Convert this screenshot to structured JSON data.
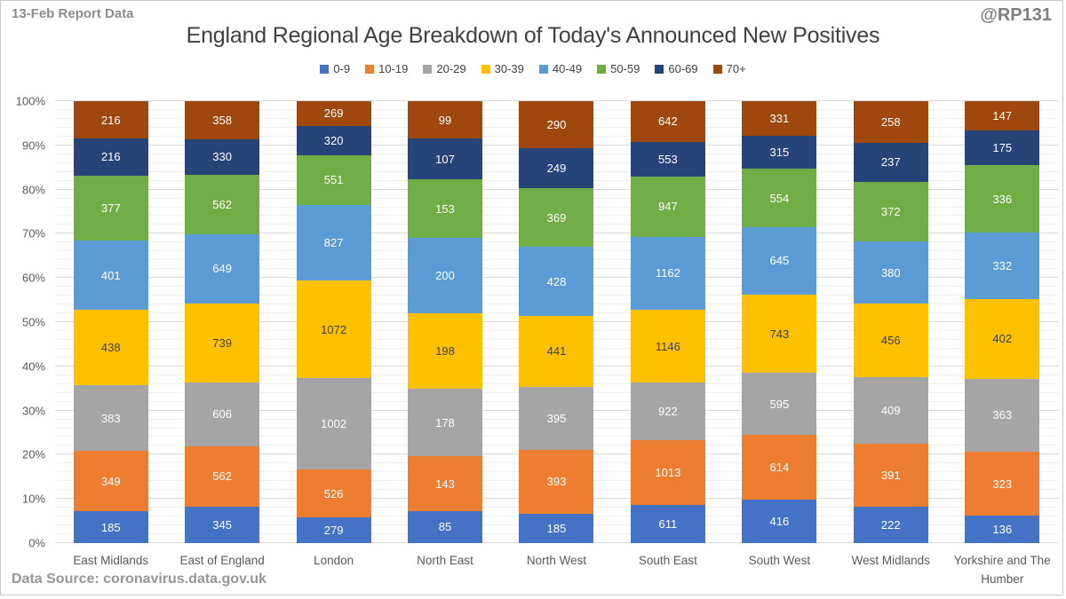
{
  "header": {
    "report_label": "13-Feb Report Data",
    "handle": "@RP131"
  },
  "footer": {
    "source": "Data Source: coronavirus.data.gov.uk"
  },
  "chart_data": {
    "type": "bar",
    "variant": "100-percent-stacked-column",
    "title": "England Regional Age Breakdown of Today's Announced New Positives",
    "xlabel": "",
    "ylabel": "",
    "ylim": [
      0,
      100
    ],
    "legend_position": "top",
    "grid": "on",
    "y_tick_labels": [
      "0%",
      "10%",
      "20%",
      "30%",
      "40%",
      "50%",
      "60%",
      "70%",
      "80%",
      "90%",
      "100%"
    ],
    "gridlines": {
      "major_step": 10,
      "minor_step": 2,
      "major_color": "#d9d9d9",
      "minor_color": "#efefef"
    },
    "categories": [
      "East Midlands",
      "East of England",
      "London",
      "North East",
      "North West",
      "South East",
      "South West",
      "West Midlands",
      "Yorkshire and The Humber"
    ],
    "series": [
      {
        "name": "0-9",
        "color": "#4472c4",
        "label_color": "#ffffff",
        "values": [
          185,
          345,
          279,
          85,
          185,
          611,
          416,
          222,
          136
        ]
      },
      {
        "name": "10-19",
        "color": "#ed7d31",
        "label_color": "#ffffff",
        "values": [
          349,
          562,
          526,
          143,
          393,
          1013,
          614,
          391,
          323
        ]
      },
      {
        "name": "20-29",
        "color": "#a5a5a5",
        "label_color": "#ffffff",
        "values": [
          383,
          606,
          1002,
          178,
          395,
          922,
          595,
          409,
          363
        ]
      },
      {
        "name": "30-39",
        "color": "#ffc000",
        "label_color": "#404040",
        "values": [
          438,
          739,
          1072,
          198,
          441,
          1146,
          743,
          456,
          402
        ]
      },
      {
        "name": "40-49",
        "color": "#5b9bd5",
        "label_color": "#ffffff",
        "values": [
          401,
          649,
          827,
          200,
          428,
          1162,
          645,
          380,
          332
        ]
      },
      {
        "name": "50-59",
        "color": "#70ad47",
        "label_color": "#ffffff",
        "values": [
          377,
          562,
          551,
          153,
          369,
          947,
          554,
          372,
          336
        ]
      },
      {
        "name": "60-69",
        "color": "#264478",
        "label_color": "#ffffff",
        "values": [
          216,
          330,
          320,
          107,
          249,
          553,
          315,
          237,
          175
        ]
      },
      {
        "name": "70+",
        "color": "#9e480e",
        "label_color": "#ffffff",
        "values": [
          216,
          358,
          269,
          99,
          290,
          642,
          331,
          258,
          147
        ]
      }
    ]
  }
}
